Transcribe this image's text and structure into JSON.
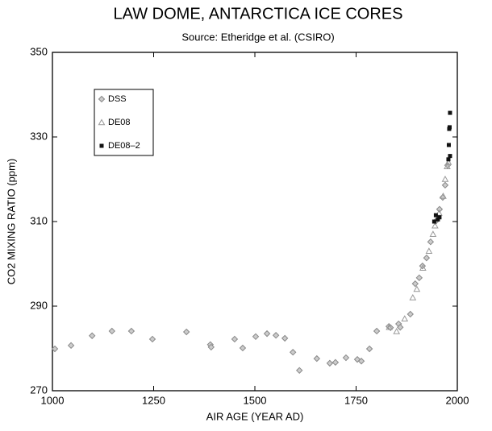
{
  "chart_data": {
    "type": "scatter",
    "title": "LAW DOME, ANTARCTICA ICE CORES",
    "subtitle": "Source:  Etheridge et al. (CSIRO)",
    "x_label": "AIR AGE  (YEAR AD)",
    "y_label": "CO2 MIXING RATIO  (ppm)",
    "xlim": [
      1000,
      2000
    ],
    "xticks": [
      1000,
      1250,
      1500,
      1750,
      2000
    ],
    "ylim": [
      270,
      350
    ],
    "yticks": [
      270,
      290,
      310,
      330,
      350
    ],
    "legend": "upper left",
    "series": [
      {
        "name": "DSS",
        "marker": "diamond",
        "color": "#888888",
        "x": [
          1006,
          1046,
          1098,
          1147,
          1195,
          1247,
          1331,
          1390,
          1392,
          1450,
          1470,
          1502,
          1530,
          1552,
          1574,
          1594,
          1610,
          1653,
          1685,
          1699,
          1725,
          1753,
          1763,
          1783,
          1801,
          1831,
          1835,
          1855,
          1859,
          1884,
          1896,
          1906,
          1914,
          1924,
          1934,
          1946,
          1956,
          1964,
          1970,
          1976
        ],
        "values": [
          279.9,
          280.7,
          283.0,
          284.1,
          284.1,
          282.2,
          283.9,
          280.9,
          280.3,
          282.2,
          280.1,
          282.8,
          283.5,
          283.1,
          282.4,
          279.1,
          274.8,
          277.6,
          276.5,
          276.7,
          277.8,
          277.4,
          277.0,
          279.9,
          284.1,
          285.2,
          284.9,
          285.8,
          285.0,
          288.1,
          295.3,
          296.7,
          299.5,
          301.4,
          305.2,
          310.0,
          312.9,
          315.7,
          318.6,
          323.3
        ]
      },
      {
        "name": "DE08",
        "marker": "triangle",
        "color": "#999999",
        "x": [
          1832,
          1850,
          1870,
          1890,
          1900,
          1915,
          1930,
          1940,
          1945,
          1955,
          1965,
          1970,
          1975,
          1978
        ],
        "values": [
          285.0,
          284.0,
          287.0,
          292.0,
          294.0,
          299.0,
          303.0,
          307.0,
          309.0,
          312.0,
          316.0,
          320.0,
          323.0,
          324.0
        ]
      },
      {
        "name": "DE08–2",
        "marker": "square",
        "color": "#111111",
        "x": [
          1943,
          1947,
          1952,
          1956,
          1978,
          1979,
          1980,
          1981,
          1982,
          1982
        ],
        "values": [
          310.0,
          311.5,
          310.5,
          311.0,
          324.7,
          328.1,
          331.9,
          332.3,
          335.7,
          325.5
        ]
      }
    ]
  }
}
